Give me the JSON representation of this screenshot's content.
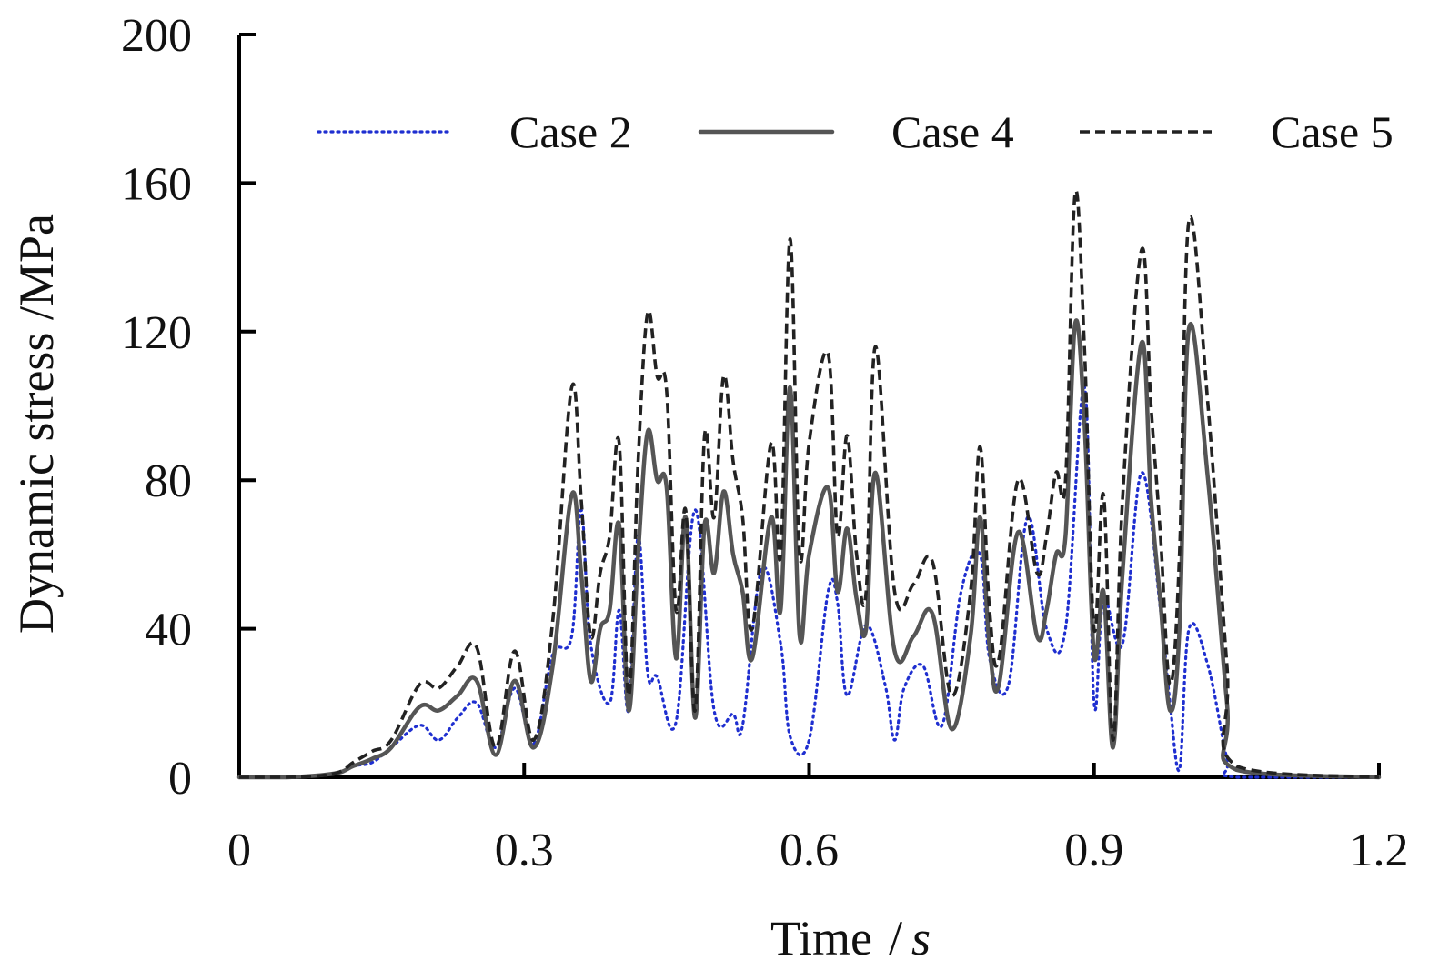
{
  "chart_data": {
    "type": "line",
    "title": "",
    "xlabel": "Time",
    "xlabel_sep": "/",
    "xlabel_unit": "s",
    "ylabel": "Dynamic stress /MPa",
    "xlim": [
      0,
      1.2
    ],
    "ylim": [
      0,
      200
    ],
    "xticks": [
      0,
      0.3,
      0.6,
      0.9,
      1.2
    ],
    "xtick_labels": [
      "0",
      "0.3",
      "0.6",
      "0.9",
      "1.2"
    ],
    "yticks": [
      0,
      40,
      80,
      120,
      160,
      200
    ],
    "ytick_labels": [
      "0",
      "40",
      "80",
      "120",
      "160",
      "200"
    ],
    "grid": false,
    "legend_position": "top",
    "series": [
      {
        "name": "Case 2",
        "style": "dotted",
        "color": "#1f2fd0",
        "x": [
          0,
          0.05,
          0.1,
          0.12,
          0.14,
          0.16,
          0.19,
          0.21,
          0.23,
          0.25,
          0.27,
          0.29,
          0.31,
          0.33,
          0.35,
          0.36,
          0.37,
          0.39,
          0.4,
          0.41,
          0.42,
          0.43,
          0.44,
          0.46,
          0.48,
          0.5,
          0.52,
          0.53,
          0.55,
          0.57,
          0.58,
          0.6,
          0.62,
          0.63,
          0.64,
          0.66,
          0.68,
          0.69,
          0.7,
          0.72,
          0.74,
          0.76,
          0.78,
          0.79,
          0.81,
          0.83,
          0.85,
          0.87,
          0.89,
          0.9,
          0.91,
          0.93,
          0.95,
          0.97,
          0.98,
          0.99,
          1.0,
          1.02,
          1.04,
          1.05,
          1.2
        ],
        "values": [
          0,
          0,
          1,
          3,
          4,
          8,
          14,
          10,
          16,
          20,
          8,
          24,
          9,
          33,
          38,
          72,
          36,
          20,
          45,
          18,
          65,
          28,
          27,
          15,
          72,
          18,
          17,
          14,
          56,
          36,
          11,
          10,
          50,
          47,
          22,
          41,
          25,
          10,
          24,
          30,
          14,
          50,
          60,
          32,
          25,
          70,
          40,
          40,
          105,
          20,
          48,
          36,
          82,
          45,
          20,
          2,
          40,
          30,
          5,
          0,
          0
        ]
      },
      {
        "name": "Case 4",
        "style": "solid",
        "color": "#555555",
        "x": [
          0,
          0.05,
          0.1,
          0.12,
          0.14,
          0.16,
          0.19,
          0.21,
          0.23,
          0.25,
          0.27,
          0.29,
          0.31,
          0.33,
          0.35,
          0.36,
          0.37,
          0.38,
          0.39,
          0.4,
          0.41,
          0.42,
          0.43,
          0.44,
          0.45,
          0.46,
          0.47,
          0.48,
          0.49,
          0.5,
          0.51,
          0.52,
          0.53,
          0.54,
          0.56,
          0.57,
          0.58,
          0.59,
          0.6,
          0.62,
          0.63,
          0.64,
          0.65,
          0.66,
          0.67,
          0.69,
          0.71,
          0.73,
          0.75,
          0.77,
          0.78,
          0.79,
          0.8,
          0.82,
          0.84,
          0.85,
          0.86,
          0.87,
          0.88,
          0.89,
          0.9,
          0.91,
          0.92,
          0.93,
          0.95,
          0.96,
          0.97,
          0.98,
          0.99,
          1.0,
          1.02,
          1.04,
          1.05,
          1.2
        ],
        "values": [
          0,
          0,
          1,
          3,
          5,
          8,
          19,
          18,
          22,
          26,
          6,
          26,
          8,
          30,
          76,
          55,
          26,
          40,
          45,
          68,
          18,
          60,
          93,
          80,
          78,
          32,
          70,
          16,
          68,
          55,
          77,
          60,
          50,
          32,
          70,
          45,
          105,
          38,
          60,
          78,
          50,
          67,
          48,
          40,
          82,
          34,
          38,
          44,
          13,
          38,
          70,
          35,
          25,
          66,
          38,
          45,
          60,
          65,
          122,
          95,
          33,
          50,
          8,
          55,
          117,
          75,
          47,
          18,
          40,
          121,
          80,
          20,
          2,
          0
        ]
      },
      {
        "name": "Case 5",
        "style": "dashed",
        "color": "#222222",
        "x": [
          0,
          0.05,
          0.1,
          0.12,
          0.14,
          0.16,
          0.19,
          0.21,
          0.23,
          0.25,
          0.27,
          0.29,
          0.31,
          0.33,
          0.35,
          0.36,
          0.37,
          0.38,
          0.39,
          0.4,
          0.41,
          0.42,
          0.43,
          0.44,
          0.45,
          0.46,
          0.47,
          0.48,
          0.49,
          0.5,
          0.51,
          0.52,
          0.53,
          0.54,
          0.56,
          0.57,
          0.58,
          0.59,
          0.6,
          0.62,
          0.63,
          0.64,
          0.65,
          0.66,
          0.67,
          0.69,
          0.71,
          0.73,
          0.75,
          0.77,
          0.78,
          0.79,
          0.8,
          0.82,
          0.84,
          0.85,
          0.86,
          0.87,
          0.88,
          0.89,
          0.9,
          0.91,
          0.92,
          0.93,
          0.95,
          0.96,
          0.97,
          0.98,
          0.99,
          1.0,
          1.02,
          1.04,
          1.05,
          1.2
        ],
        "values": [
          0,
          0,
          1,
          4,
          7,
          10,
          25,
          24,
          30,
          35,
          8,
          34,
          10,
          42,
          105,
          75,
          38,
          55,
          65,
          90,
          22,
          85,
          125,
          108,
          104,
          45,
          72,
          18,
          92,
          70,
          108,
          85,
          70,
          40,
          90,
          60,
          145,
          60,
          90,
          114,
          65,
          92,
          60,
          50,
          116,
          50,
          52,
          58,
          22,
          50,
          89,
          45,
          32,
          80,
          55,
          65,
          82,
          80,
          157,
          115,
          40,
          76,
          10,
          75,
          142,
          100,
          65,
          25,
          60,
          150,
          100,
          30,
          3,
          0
        ]
      }
    ]
  }
}
